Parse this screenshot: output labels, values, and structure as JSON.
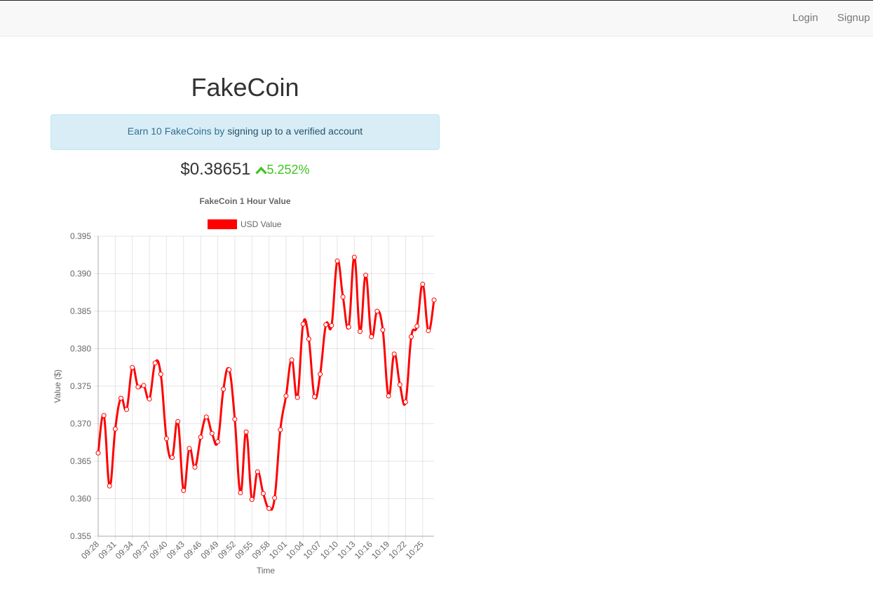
{
  "nav": {
    "login": "Login",
    "signup": "Signup"
  },
  "page": {
    "title": "FakeCoin",
    "alert": {
      "prefix": "Earn 10 FakeCoins by ",
      "link": "signing up to a verified account"
    },
    "price": "$0.38651",
    "change": "5.252%",
    "change_direction": "up"
  },
  "colors": {
    "line": "#ff0000",
    "positive": "#3fc51f",
    "alert_bg": "#d9edf7",
    "alert_text": "#31708f"
  },
  "chart_data": {
    "type": "line",
    "title": "FakeCoin 1 Hour Value",
    "xlabel": "Time",
    "ylabel": "Value ($)",
    "legend_position": "top",
    "grid": true,
    "ylim": [
      0.355,
      0.395
    ],
    "yticks": [
      0.355,
      0.36,
      0.365,
      0.37,
      0.375,
      0.38,
      0.385,
      0.39,
      0.395
    ],
    "xtick_labels": [
      "09:28",
      "09:31",
      "09:34",
      "09:37",
      "09:40",
      "09:43",
      "09:46",
      "09:49",
      "09:52",
      "09:55",
      "09:58",
      "10:01",
      "10:04",
      "10:07",
      "10:10",
      "10:13",
      "10:16",
      "10:19",
      "10:22",
      "10:25"
    ],
    "x": [
      "09:28",
      "09:29",
      "09:30",
      "09:31",
      "09:32",
      "09:33",
      "09:34",
      "09:35",
      "09:36",
      "09:37",
      "09:38",
      "09:39",
      "09:40",
      "09:41",
      "09:42",
      "09:43",
      "09:44",
      "09:45",
      "09:46",
      "09:47",
      "09:48",
      "09:49",
      "09:50",
      "09:51",
      "09:52",
      "09:53",
      "09:54",
      "09:55",
      "09:56",
      "09:57",
      "09:58",
      "09:59",
      "10:00",
      "10:01",
      "10:02",
      "10:03",
      "10:04",
      "10:05",
      "10:06",
      "10:07",
      "10:08",
      "10:09",
      "10:10",
      "10:11",
      "10:12",
      "10:13",
      "10:14",
      "10:15",
      "10:16",
      "10:17",
      "10:18",
      "10:19",
      "10:20",
      "10:21",
      "10:22",
      "10:23",
      "10:24",
      "10:25",
      "10:26",
      "10:27"
    ],
    "series": [
      {
        "name": "USD Value",
        "color": "#ff0000",
        "values": [
          0.3661,
          0.3711,
          0.3617,
          0.3693,
          0.3734,
          0.3719,
          0.3775,
          0.3749,
          0.3751,
          0.3733,
          0.3781,
          0.3766,
          0.368,
          0.3655,
          0.3703,
          0.3611,
          0.3667,
          0.3642,
          0.3682,
          0.3709,
          0.3687,
          0.3676,
          0.3746,
          0.3772,
          0.3706,
          0.3608,
          0.3689,
          0.3599,
          0.3636,
          0.3607,
          0.3587,
          0.3601,
          0.3692,
          0.3737,
          0.3785,
          0.3735,
          0.3833,
          0.3813,
          0.3736,
          0.3766,
          0.3832,
          0.3831,
          0.3917,
          0.3869,
          0.3829,
          0.3922,
          0.3823,
          0.3898,
          0.3816,
          0.385,
          0.3825,
          0.3737,
          0.3793,
          0.3752,
          0.3729,
          0.3816,
          0.383,
          0.3886,
          0.3824,
          0.3865
        ]
      }
    ]
  }
}
